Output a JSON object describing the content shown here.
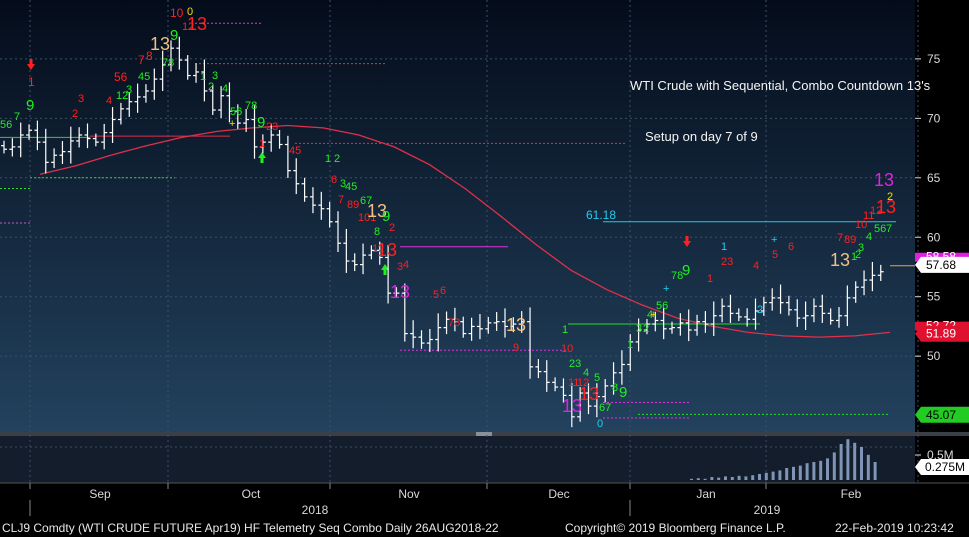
{
  "chart_data": {
    "type": "candlestick",
    "title": "WTI Crude with Sequential, Combo Countdown 13's",
    "subtitle": "Setup on day 7 of 9",
    "y_ticks": [
      50,
      55,
      60,
      65,
      70,
      75
    ],
    "ylim": [
      42.5,
      78.5
    ],
    "x_month_labels": [
      "Sep",
      "Oct",
      "Nov",
      "Dec",
      "Jan",
      "Feb"
    ],
    "x_year_labels": [
      "2018",
      "2019"
    ],
    "price_tags": [
      {
        "value": "57.68",
        "bg": "#ffffff",
        "fg": "#000000"
      },
      {
        "value": "51.89",
        "bg": "#e0102f",
        "fg": "#ffffff"
      },
      {
        "value": "45.07",
        "bg": "#22cc22",
        "fg": "#000000"
      }
    ],
    "partial_price_tags": [
      "58.58",
      "52.72"
    ],
    "resistance_label": "61.18",
    "volume_axis_label": "0.5M",
    "volume_tag": "0.275M",
    "moving_average_color": "#e0304a",
    "up_bar_color": "#ffffff",
    "volume_color": "#8095b5",
    "closes": [
      67.4,
      67.6,
      68.6,
      69.0,
      68.0,
      66.3,
      66.9,
      67.2,
      68.1,
      68.6,
      68.3,
      68.0,
      68.8,
      69.9,
      70.8,
      71.4,
      71.8,
      72.3,
      73.3,
      74.5,
      75.9,
      74.9,
      73.6,
      73.9,
      72.3,
      70.7,
      71.9,
      70.6,
      69.6,
      69.9,
      67.6,
      68.0,
      68.6,
      67.8,
      65.6,
      64.5,
      63.4,
      62.7,
      62.4,
      61.3,
      59.5,
      58.0,
      57.7,
      58.5,
      58.9,
      58.3,
      55.3,
      55.3,
      51.9,
      51.6,
      51.1,
      51.4,
      52.4,
      53.1,
      52.9,
      51.9,
      52.5,
      52.3,
      52.8,
      52.9,
      52.5,
      52.7,
      52.9,
      49.1,
      48.7,
      47.8,
      47.4,
      46.7,
      44.9,
      46.9,
      45.8,
      46.6,
      47.5,
      48.6,
      49.3,
      51.2,
      52.2,
      52.7,
      53.0,
      52.3,
      52.4,
      52.8,
      52.2,
      52.9,
      52.7,
      53.4,
      54.2,
      53.6,
      53.3,
      53.1,
      53.8,
      54.5,
      54.9,
      54.5,
      53.9,
      53.2,
      53.4,
      54.2,
      53.6,
      53.0,
      53.4,
      54.9,
      55.8,
      56.4,
      56.8,
      57.1
    ]
  },
  "annotations": [
    {
      "text": "1",
      "color": "#ff2020"
    },
    {
      "text": "9",
      "color": "#22ee22"
    },
    {
      "text": "56",
      "color": "#22ee22"
    },
    {
      "text": "7",
      "color": "#22ee22"
    },
    {
      "text": "2",
      "color": "#ff2020"
    },
    {
      "text": "3",
      "color": "#ff2020"
    },
    {
      "text": "4",
      "color": "#ff2020"
    },
    {
      "text": "56",
      "color": "#ff2020"
    },
    {
      "text": "12",
      "color": "#22ee22"
    },
    {
      "text": "3",
      "color": "#22ee22"
    },
    {
      "text": "7",
      "color": "#ff2020"
    },
    {
      "text": "8",
      "color": "#ff2020"
    },
    {
      "text": "45",
      "color": "#22ee22"
    },
    {
      "text": "13",
      "color": "#f0c080"
    },
    {
      "text": "78",
      "color": "#22ee22"
    },
    {
      "text": "9",
      "color": "#22ee22"
    },
    {
      "text": "10",
      "color": "#ff2020"
    },
    {
      "text": "0",
      "color": "#f0e000"
    },
    {
      "text": "12",
      "color": "#ff2020"
    },
    {
      "text": "13",
      "color": "#ff2020"
    },
    {
      "text": "1",
      "color": "#22ee22"
    },
    {
      "text": "3",
      "color": "#22ee22"
    },
    {
      "text": "2",
      "color": "#22ee22"
    },
    {
      "text": "4",
      "color": "#22ee22"
    },
    {
      "text": "56",
      "color": "#22ee22"
    },
    {
      "text": "78",
      "color": "#22ee22"
    },
    {
      "text": "+",
      "color": "#f0e000"
    },
    {
      "text": "9",
      "color": "#22ee22"
    },
    {
      "text": "23",
      "color": "#ff2020"
    },
    {
      "text": "1",
      "color": "#ff2020"
    },
    {
      "text": "45",
      "color": "#ff2020"
    },
    {
      "text": "1",
      "color": "#22ee22"
    },
    {
      "text": "2",
      "color": "#22ee22"
    },
    {
      "text": "6",
      "color": "#ff2020"
    },
    {
      "text": "3",
      "color": "#22ee22"
    },
    {
      "text": "45",
      "color": "#22ee22"
    },
    {
      "text": "7",
      "color": "#ff2020"
    },
    {
      "text": "89",
      "color": "#ff2020"
    },
    {
      "text": "67",
      "color": "#22ee22"
    },
    {
      "text": "101",
      "color": "#ff2020"
    },
    {
      "text": "13",
      "color": "#f0c080"
    },
    {
      "text": "9",
      "color": "#22ee22"
    },
    {
      "text": "8",
      "color": "#22ee22"
    },
    {
      "text": "2",
      "color": "#ff2020"
    },
    {
      "text": "12",
      "color": "#ff2020"
    },
    {
      "text": "13",
      "color": "#ff2020"
    },
    {
      "text": "3",
      "color": "#ff2020"
    },
    {
      "text": "4",
      "color": "#ff2020"
    },
    {
      "text": "13",
      "color": "#dd22dd"
    },
    {
      "text": "5",
      "color": "#ff2020"
    },
    {
      "text": "6",
      "color": "#ff2020"
    },
    {
      "text": "78",
      "color": "#ff2020"
    },
    {
      "text": "13",
      "color": "#f0c080"
    },
    {
      "text": "9",
      "color": "#ff2020"
    },
    {
      "text": "1",
      "color": "#22ee22"
    },
    {
      "text": "10",
      "color": "#ff2020"
    },
    {
      "text": "23",
      "color": "#22ee22"
    },
    {
      "text": "4",
      "color": "#22ee22"
    },
    {
      "text": "5",
      "color": "#22ee22"
    },
    {
      "text": "11",
      "color": "#ff2020"
    },
    {
      "text": "12",
      "color": "#ff2020"
    },
    {
      "text": "13",
      "color": "#ff2020"
    },
    {
      "text": "13",
      "color": "#dd22dd"
    },
    {
      "text": "67",
      "color": "#22ee22"
    },
    {
      "text": "8",
      "color": "#22ee22"
    },
    {
      "text": "9",
      "color": "#22ee22"
    },
    {
      "text": "0",
      "color": "#22ccee"
    },
    {
      "text": "1",
      "color": "#22ee22"
    },
    {
      "text": "2",
      "color": "#22ee22"
    },
    {
      "text": "3",
      "color": "#22ee22"
    },
    {
      "text": "4",
      "color": "#22ee22"
    },
    {
      "text": "+",
      "color": "#f0e000"
    },
    {
      "text": "56",
      "color": "#22ee22"
    },
    {
      "text": "78",
      "color": "#22ee22"
    },
    {
      "text": "9",
      "color": "#22ee22"
    },
    {
      "text": "+",
      "color": "#22ccee"
    },
    {
      "text": "1",
      "color": "#ff2020"
    },
    {
      "text": "23",
      "color": "#ff2020"
    },
    {
      "text": "4",
      "color": "#ff2020"
    },
    {
      "text": "5",
      "color": "#ff2020"
    },
    {
      "text": "6",
      "color": "#ff2020"
    },
    {
      "text": "1",
      "color": "#22ccee"
    },
    {
      "text": "+",
      "color": "#22ccee"
    },
    {
      "text": "2",
      "color": "#22ccee"
    },
    {
      "text": "13",
      "color": "#f0c080"
    },
    {
      "text": "1",
      "color": "#22ee22"
    },
    {
      "text": "2",
      "color": "#22ee22"
    },
    {
      "text": "3",
      "color": "#22ee22"
    },
    {
      "text": "4",
      "color": "#22ee22"
    },
    {
      "text": "56",
      "color": "#22ee22"
    },
    {
      "text": "7",
      "color": "#22ee22"
    },
    {
      "text": "7",
      "color": "#ff2020"
    },
    {
      "text": "89",
      "color": "#ff2020"
    },
    {
      "text": "10",
      "color": "#ff2020"
    },
    {
      "text": "11",
      "color": "#ff2020"
    },
    {
      "text": "12",
      "color": "#ff2020"
    },
    {
      "text": "13",
      "color": "#ff2020"
    },
    {
      "text": "2",
      "color": "#f0e000"
    },
    {
      "text": "13",
      "color": "#dd22dd"
    }
  ],
  "footer": {
    "left": "CLJ9 Comdty (WTI CRUDE FUTURE  Apr19) HF Telemetry Seq Combo  Daily 26AUG2018-22",
    "copyright": "Copyright© 2019 Bloomberg Finance L.P.",
    "timestamp": "22-Feb-2019 10:23:42"
  }
}
